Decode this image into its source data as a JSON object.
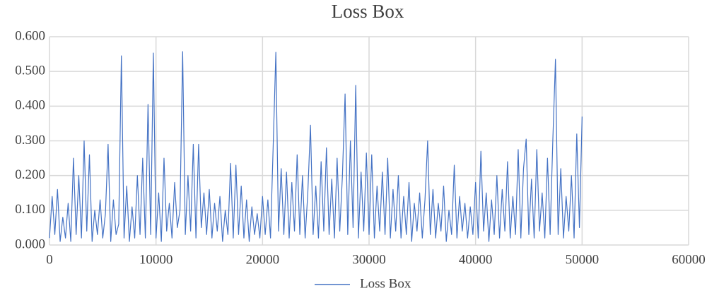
{
  "chart_data": {
    "type": "line",
    "title": "Loss Box",
    "x": [
      0,
      250,
      500,
      750,
      1000,
      1250,
      1500,
      1750,
      2000,
      2250,
      2500,
      2750,
      3000,
      3250,
      3500,
      3750,
      4000,
      4250,
      4500,
      4750,
      5000,
      5250,
      5500,
      5750,
      6000,
      6250,
      6500,
      6750,
      7000,
      7250,
      7500,
      7750,
      8000,
      8250,
      8500,
      8750,
      9000,
      9250,
      9500,
      9750,
      10000,
      10250,
      10500,
      10750,
      11000,
      11250,
      11500,
      11750,
      12000,
      12250,
      12500,
      12750,
      13000,
      13250,
      13500,
      13750,
      14000,
      14250,
      14500,
      14750,
      15000,
      15250,
      15500,
      15750,
      16000,
      16250,
      16500,
      16750,
      17000,
      17250,
      17500,
      17750,
      18000,
      18250,
      18500,
      18750,
      19000,
      19250,
      19500,
      19750,
      20000,
      20250,
      20500,
      20750,
      21000,
      21250,
      21500,
      21750,
      22000,
      22250,
      22500,
      22750,
      23000,
      23250,
      23500,
      23750,
      24000,
      24250,
      24500,
      24750,
      25000,
      25250,
      25500,
      25750,
      26000,
      26250,
      26500,
      26750,
      27000,
      27250,
      27500,
      27750,
      28000,
      28250,
      28500,
      28750,
      29000,
      29250,
      29500,
      29750,
      30000,
      30250,
      30500,
      30750,
      31000,
      31250,
      31500,
      31750,
      32000,
      32250,
      32500,
      32750,
      33000,
      33250,
      33500,
      33750,
      34000,
      34250,
      34500,
      34750,
      35000,
      35250,
      35500,
      35750,
      36000,
      36250,
      36500,
      36750,
      37000,
      37250,
      37500,
      37750,
      38000,
      38250,
      38500,
      38750,
      39000,
      39250,
      39500,
      39750,
      40000,
      40250,
      40500,
      40750,
      41000,
      41250,
      41500,
      41750,
      42000,
      42250,
      42500,
      42750,
      43000,
      43250,
      43500,
      43750,
      44000,
      44250,
      44500,
      44750,
      45000,
      45250,
      45500,
      45750,
      46000,
      46250,
      46500,
      46750,
      47000,
      47250,
      47500,
      47750,
      48000,
      48250,
      48500,
      48750,
      49000,
      49250,
      49500,
      49750,
      50000
    ],
    "series": [
      {
        "name": "Loss Box",
        "color": "#4472c4",
        "values": [
          0.02,
          0.14,
          0.03,
          0.16,
          0.01,
          0.08,
          0.02,
          0.12,
          0.01,
          0.25,
          0.03,
          0.2,
          0.02,
          0.3,
          0.04,
          0.26,
          0.01,
          0.1,
          0.03,
          0.13,
          0.02,
          0.09,
          0.29,
          0.01,
          0.13,
          0.03,
          0.06,
          0.545,
          0.02,
          0.17,
          0.01,
          0.11,
          0.02,
          0.2,
          0.03,
          0.25,
          0.02,
          0.405,
          0.03,
          0.553,
          0.02,
          0.15,
          0.01,
          0.25,
          0.04,
          0.12,
          0.02,
          0.18,
          0.05,
          0.1,
          0.557,
          0.03,
          0.2,
          0.04,
          0.29,
          0.02,
          0.29,
          0.05,
          0.15,
          0.03,
          0.16,
          0.02,
          0.12,
          0.04,
          0.14,
          0.01,
          0.1,
          0.03,
          0.235,
          0.02,
          0.23,
          0.03,
          0.17,
          0.02,
          0.13,
          0.01,
          0.11,
          0.03,
          0.09,
          0.02,
          0.14,
          0.03,
          0.13,
          0.02,
          0.285,
          0.555,
          0.04,
          0.22,
          0.03,
          0.21,
          0.02,
          0.18,
          0.04,
          0.26,
          0.03,
          0.2,
          0.02,
          0.15,
          0.345,
          0.03,
          0.17,
          0.02,
          0.24,
          0.04,
          0.28,
          0.03,
          0.19,
          0.02,
          0.25,
          0.04,
          0.2,
          0.435,
          0.03,
          0.3,
          0.05,
          0.46,
          0.02,
          0.21,
          0.04,
          0.265,
          0.03,
          0.26,
          0.02,
          0.17,
          0.04,
          0.21,
          0.03,
          0.25,
          0.02,
          0.16,
          0.04,
          0.2,
          0.02,
          0.14,
          0.03,
          0.18,
          0.01,
          0.12,
          0.04,
          0.15,
          0.02,
          0.13,
          0.3,
          0.03,
          0.16,
          0.02,
          0.12,
          0.04,
          0.17,
          0.01,
          0.1,
          0.03,
          0.23,
          0.02,
          0.14,
          0.04,
          0.12,
          0.02,
          0.11,
          0.03,
          0.18,
          0.02,
          0.27,
          0.04,
          0.15,
          0.01,
          0.13,
          0.03,
          0.2,
          0.02,
          0.16,
          0.04,
          0.24,
          0.02,
          0.14,
          0.03,
          0.275,
          0.02,
          0.22,
          0.305,
          0.03,
          0.19,
          0.02,
          0.275,
          0.04,
          0.15,
          0.02,
          0.25,
          0.03,
          0.3,
          0.535,
          0.03,
          0.22,
          0.02,
          0.14,
          0.04,
          0.2,
          0.02,
          0.32,
          0.05,
          0.37
        ]
      }
    ],
    "xlim": [
      0,
      60000
    ],
    "xticks": [
      0,
      10000,
      20000,
      30000,
      40000,
      50000,
      60000
    ],
    "ylim": [
      0,
      0.6
    ],
    "yticks": [
      {
        "value": 0,
        "label": "0.000"
      },
      {
        "value": 0.1,
        "label": "0.100"
      },
      {
        "value": 0.2,
        "label": "0.200"
      },
      {
        "value": 0.3,
        "label": "0.300"
      },
      {
        "value": 0.4,
        "label": "0.400"
      },
      {
        "value": 0.5,
        "label": "0.500"
      },
      {
        "value": 0.6,
        "label": "0.600"
      }
    ],
    "grid": true,
    "legend": "bottom"
  }
}
